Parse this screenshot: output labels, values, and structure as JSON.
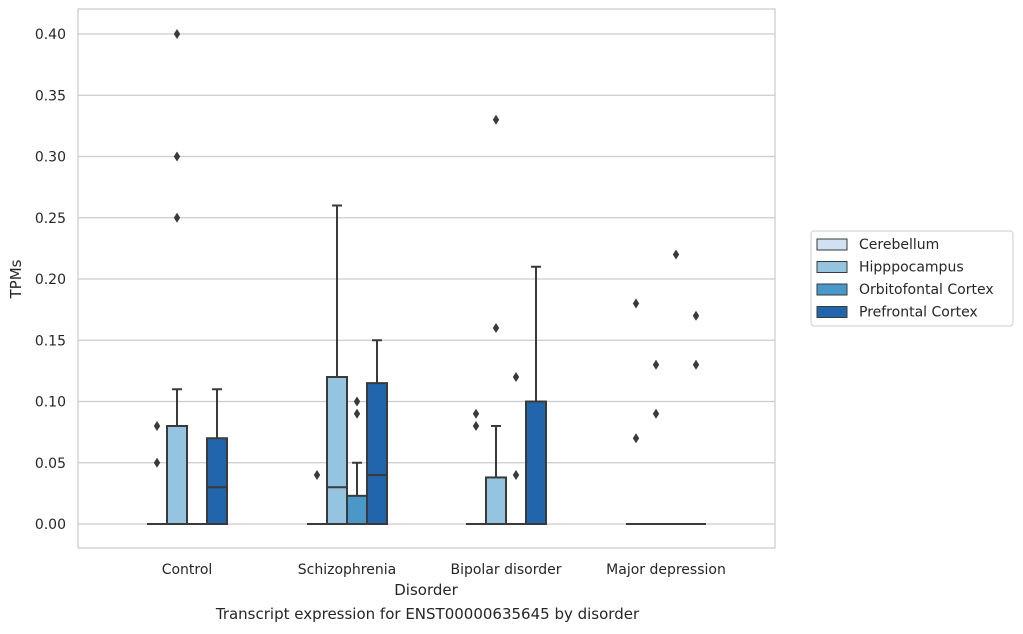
{
  "caption": "Transcript expression for ENST00000635645 by disorder",
  "chart_data": {
    "type": "box",
    "title": "",
    "xlabel": "Disorder",
    "ylabel": "TPMs",
    "ylim": [
      -0.02,
      0.42
    ],
    "yticks": [
      0.0,
      0.05,
      0.1,
      0.15,
      0.2,
      0.25,
      0.3,
      0.35,
      0.4
    ],
    "ytick_labels": [
      "0.00",
      "0.05",
      "0.10",
      "0.15",
      "0.20",
      "0.25",
      "0.30",
      "0.35",
      "0.40"
    ],
    "grid": true,
    "legend_position": "right",
    "categories": [
      "Control",
      "Schizophrenia",
      "Bipolar disorder",
      "Major depression"
    ],
    "series": [
      {
        "name": "Cerebellum",
        "color": "#d0e1f2",
        "boxes": [
          {
            "q1": 0,
            "median": 0,
            "q3": 0,
            "whisker_low": 0,
            "whisker_high": 0,
            "outliers": [
              0.05,
              0.08
            ]
          },
          {
            "q1": 0,
            "median": 0,
            "q3": 0,
            "whisker_low": 0,
            "whisker_high": 0,
            "outliers": [
              0.04
            ]
          },
          {
            "q1": 0,
            "median": 0,
            "q3": 0,
            "whisker_low": 0,
            "whisker_high": 0,
            "outliers": [
              0.08,
              0.09
            ]
          },
          {
            "q1": 0,
            "median": 0,
            "q3": 0,
            "whisker_low": 0,
            "whisker_high": 0,
            "outliers": [
              0.07,
              0.18
            ]
          }
        ]
      },
      {
        "name": "Hipppocampus",
        "color": "#94c4df",
        "boxes": [
          {
            "q1": 0,
            "median": 0,
            "q3": 0.08,
            "whisker_low": 0,
            "whisker_high": 0.11,
            "outliers": [
              0.25,
              0.3,
              0.4
            ]
          },
          {
            "q1": 0,
            "median": 0.03,
            "q3": 0.12,
            "whisker_low": 0,
            "whisker_high": 0.26,
            "outliers": []
          },
          {
            "q1": 0,
            "median": 0,
            "q3": 0.038,
            "whisker_low": 0,
            "whisker_high": 0.08,
            "outliers": [
              0.16,
              0.33
            ]
          },
          {
            "q1": 0,
            "median": 0,
            "q3": 0,
            "whisker_low": 0,
            "whisker_high": 0,
            "outliers": [
              0.09,
              0.13
            ]
          }
        ]
      },
      {
        "name": "Orbitofontal Cortex",
        "color": "#4a98c9",
        "boxes": [
          {
            "q1": 0,
            "median": 0,
            "q3": 0,
            "whisker_low": 0,
            "whisker_high": 0,
            "outliers": []
          },
          {
            "q1": 0,
            "median": 0,
            "q3": 0.023,
            "whisker_low": 0,
            "whisker_high": 0.05,
            "outliers": [
              0.09,
              0.1
            ]
          },
          {
            "q1": 0,
            "median": 0,
            "q3": 0,
            "whisker_low": 0,
            "whisker_high": 0,
            "outliers": [
              0.04,
              0.12
            ]
          },
          {
            "q1": 0,
            "median": 0,
            "q3": 0,
            "whisker_low": 0,
            "whisker_high": 0,
            "outliers": [
              0.22
            ]
          }
        ]
      },
      {
        "name": "Prefrontal Cortex",
        "color": "#2166ac",
        "boxes": [
          {
            "q1": 0,
            "median": 0.03,
            "q3": 0.07,
            "whisker_low": 0,
            "whisker_high": 0.11,
            "outliers": []
          },
          {
            "q1": 0,
            "median": 0.04,
            "q3": 0.115,
            "whisker_low": 0,
            "whisker_high": 0.15,
            "outliers": []
          },
          {
            "q1": 0,
            "median": 0,
            "q3": 0.1,
            "whisker_low": 0,
            "whisker_high": 0.21,
            "outliers": []
          },
          {
            "q1": 0,
            "median": 0,
            "q3": 0,
            "whisker_low": 0,
            "whisker_high": 0,
            "outliers": [
              0.13,
              0.17
            ]
          }
        ]
      }
    ]
  }
}
